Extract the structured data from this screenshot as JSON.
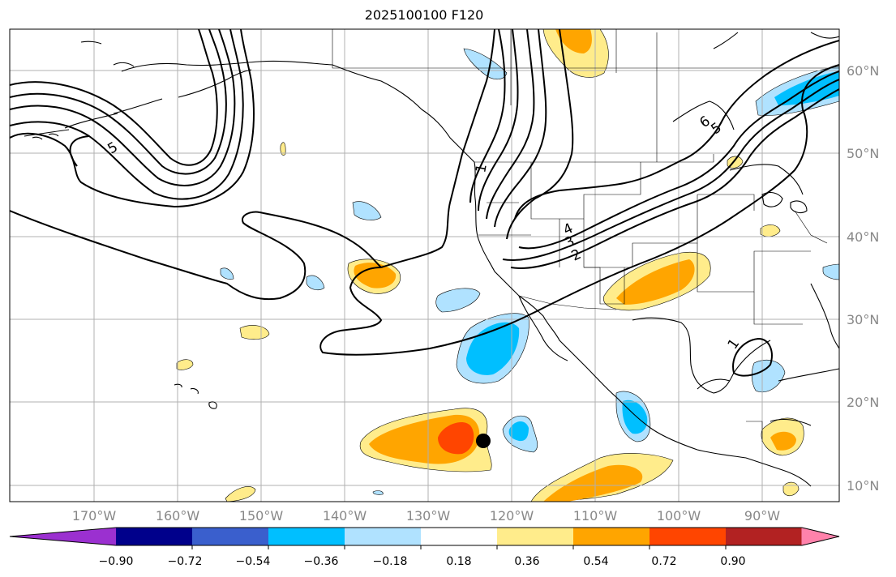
{
  "title": "2025100100 F120",
  "lat_labels": [
    "60°N",
    "50°N",
    "40°N",
    "30°N",
    "20°N",
    "10°N"
  ],
  "lon_labels": [
    "170°W",
    "160°W",
    "150°W",
    "140°W",
    "130°W",
    "120°W",
    "110°W",
    "100°W",
    "90°W"
  ],
  "colorbar": {
    "ticks": [
      "−0.90",
      "−0.72",
      "−0.54",
      "−0.36",
      "−0.18",
      "0.18",
      "0.36",
      "0.54",
      "0.72",
      "0.90"
    ],
    "colors": [
      "#9b30d0",
      "#00008b",
      "#3a5fcd",
      "#00bfff",
      "#b0e2ff",
      "#ffffff",
      "#ffec8b",
      "#ffa500",
      "#ff4500",
      "#b22222",
      "#ff82ab"
    ]
  },
  "contour_labels": [
    "5",
    "4",
    "3",
    "2",
    "1",
    "6",
    "5",
    "1"
  ],
  "colors": {
    "contour": "#000000",
    "coastline": "#000000",
    "grid": "#b0b0b0"
  }
}
